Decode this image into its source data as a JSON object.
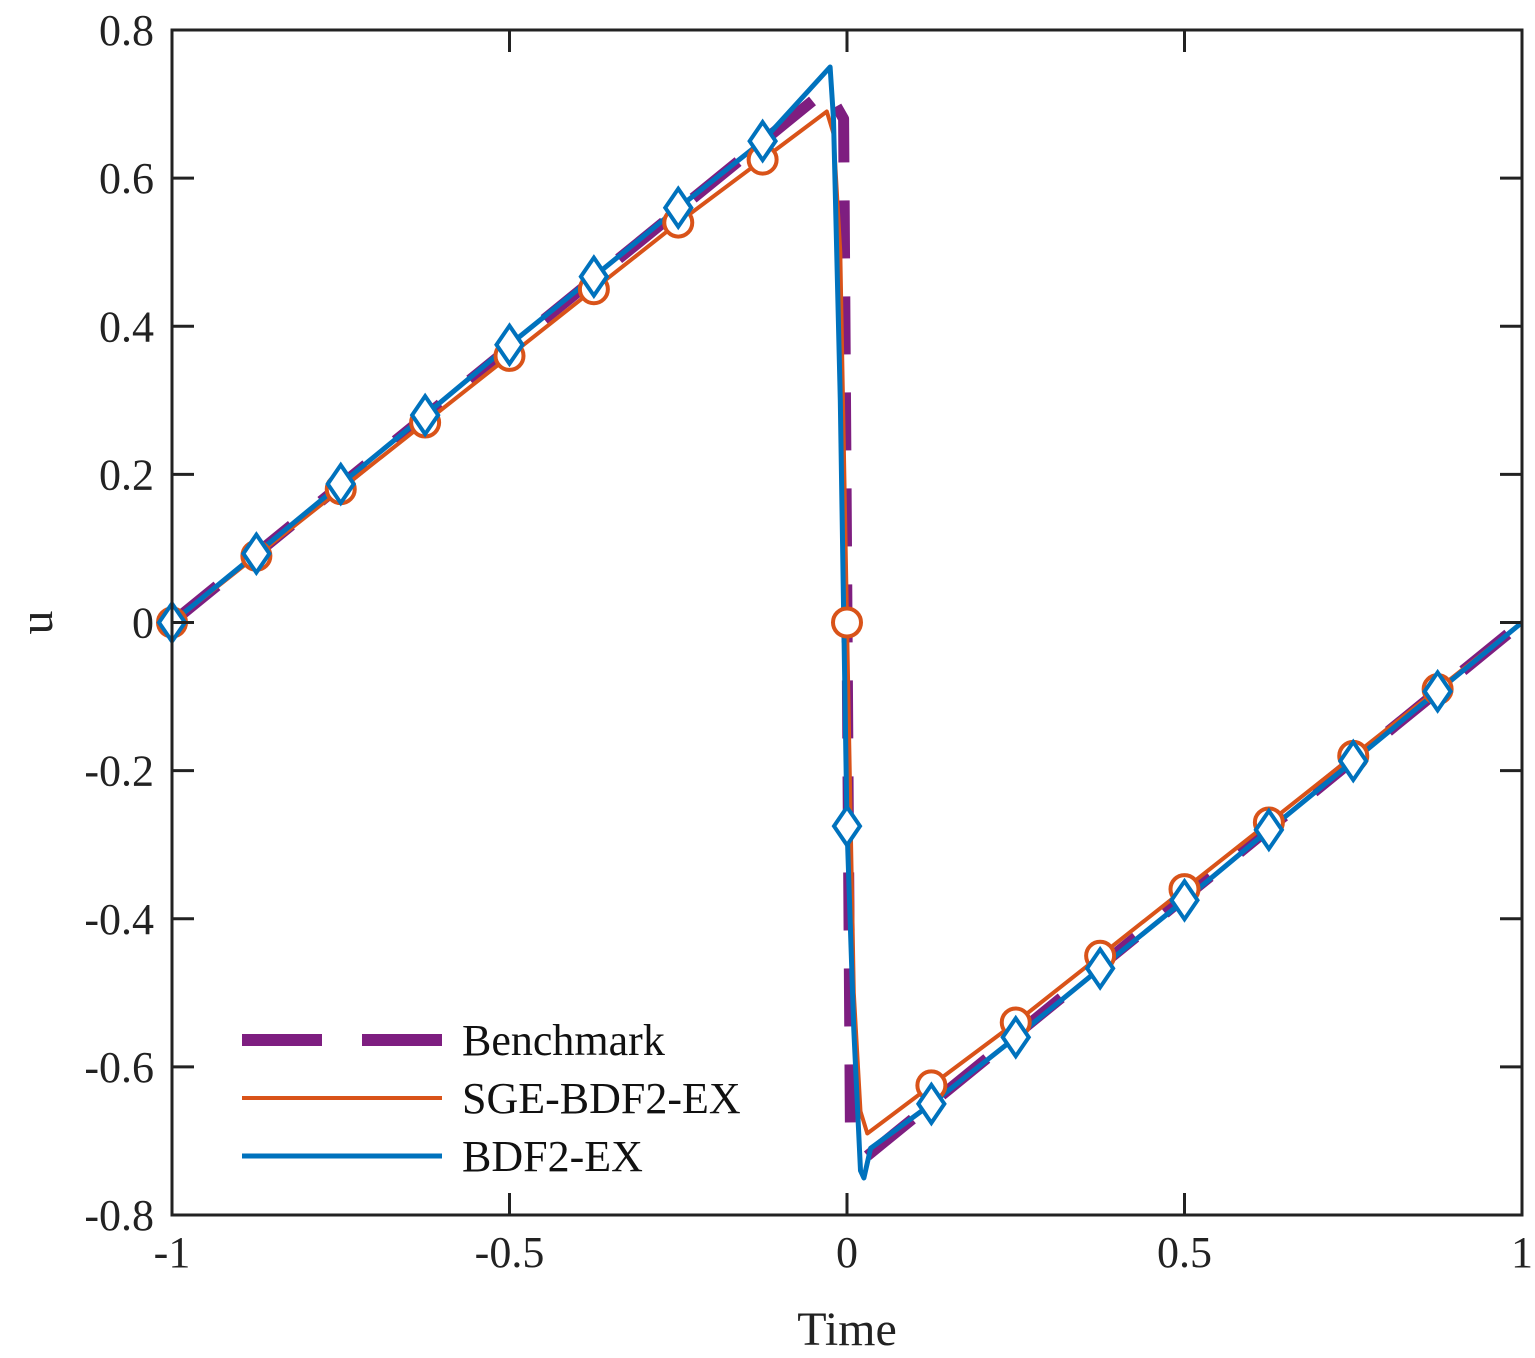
{
  "chart_data": {
    "type": "line",
    "title": "",
    "xlabel": "Time",
    "ylabel": "u",
    "xlim": [
      -1,
      1
    ],
    "ylim": [
      -0.8,
      0.8
    ],
    "xticks": [
      -1,
      -0.5,
      0,
      0.5,
      1
    ],
    "xtick_labels": [
      "-1",
      "-0.5",
      "0",
      "0.5",
      "1"
    ],
    "yticks": [
      -0.8,
      -0.6,
      -0.4,
      -0.2,
      0,
      0.2,
      0.4,
      0.6,
      0.8
    ],
    "ytick_labels": [
      "-0.8",
      "-0.6",
      "-0.4",
      "-0.2",
      "0",
      "0.2",
      "0.4",
      "0.6",
      "0.8"
    ],
    "grid": false,
    "legend_position": "bottom-left",
    "series": [
      {
        "name": "Benchmark",
        "color": "#7E1E80",
        "style": "dashed",
        "marker": "none",
        "x": [
          -1,
          -0.03,
          -0.005,
          0,
          0.005,
          0.03,
          1
        ],
        "y": [
          0,
          0.72,
          0.68,
          0,
          -0.68,
          -0.72,
          0
        ]
      },
      {
        "name": "SGE-BDF2-EX",
        "color": "#D95319",
        "style": "solid",
        "marker": "circle",
        "x": [
          -1,
          -0.875,
          -0.75,
          -0.625,
          -0.5,
          -0.375,
          -0.25,
          -0.125,
          -0.03,
          -0.02,
          -0.01,
          0,
          0.01,
          0.02,
          0.03,
          0.125,
          0.25,
          0.375,
          0.5,
          0.625,
          0.75,
          0.875,
          1
        ],
        "y": [
          0,
          0.09,
          0.18,
          0.27,
          0.36,
          0.45,
          0.54,
          0.625,
          0.69,
          0.66,
          0.5,
          0,
          -0.5,
          -0.66,
          -0.69,
          -0.625,
          -0.54,
          -0.45,
          -0.36,
          -0.27,
          -0.18,
          -0.09,
          0
        ],
        "marker_x": [
          -1,
          -0.875,
          -0.75,
          -0.625,
          -0.5,
          -0.375,
          -0.25,
          -0.125,
          0,
          0.125,
          0.25,
          0.375,
          0.5,
          0.625,
          0.75,
          0.875
        ],
        "marker_y": [
          0,
          0.09,
          0.18,
          0.27,
          0.36,
          0.45,
          0.54,
          0.625,
          0,
          -0.625,
          -0.54,
          -0.45,
          -0.36,
          -0.27,
          -0.18,
          -0.09
        ]
      },
      {
        "name": "BDF2-EX",
        "color": "#0072BD",
        "style": "solid",
        "marker": "diamond",
        "x": [
          -1,
          -0.875,
          -0.75,
          -0.625,
          -0.5,
          -0.375,
          -0.25,
          -0.125,
          -0.025,
          -0.02,
          -0.01,
          0,
          0.01,
          0.02,
          0.025,
          0.035,
          0.125,
          0.25,
          0.375,
          0.5,
          0.625,
          0.75,
          0.875,
          1
        ],
        "y": [
          0,
          0.093,
          0.187,
          0.28,
          0.375,
          0.467,
          0.56,
          0.65,
          0.75,
          0.68,
          0.3,
          -0.275,
          -0.55,
          -0.74,
          -0.75,
          -0.71,
          -0.65,
          -0.56,
          -0.467,
          -0.375,
          -0.28,
          -0.187,
          -0.093,
          0
        ],
        "marker_x": [
          -1,
          -0.875,
          -0.75,
          -0.625,
          -0.5,
          -0.375,
          -0.25,
          -0.125,
          0,
          0.125,
          0.25,
          0.375,
          0.5,
          0.625,
          0.75,
          0.875
        ],
        "marker_y": [
          0,
          0.093,
          0.187,
          0.28,
          0.375,
          0.467,
          0.56,
          0.65,
          -0.275,
          -0.65,
          -0.56,
          -0.467,
          -0.375,
          -0.28,
          -0.187,
          -0.093
        ]
      }
    ]
  }
}
